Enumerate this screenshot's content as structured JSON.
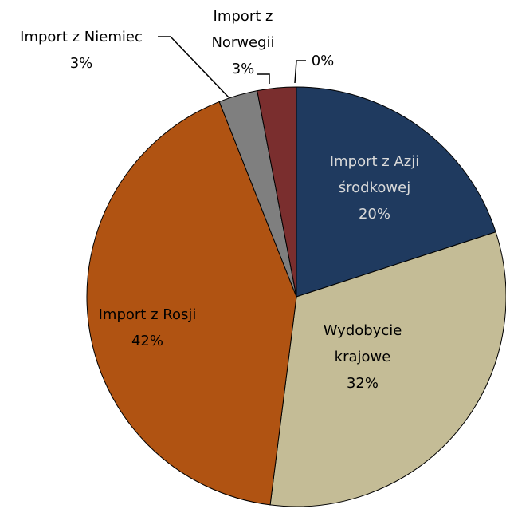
{
  "chart_data": {
    "type": "pie",
    "categories": [
      "Import z Azji środkowej",
      "Wydobycie krajowe",
      "Import z Rosji",
      "Import z Niemiec",
      "Import z Norwegii",
      null
    ],
    "values": [
      20,
      32,
      42,
      3,
      3,
      0
    ],
    "value_labels": [
      "20%",
      "32%",
      "42%",
      "3%",
      "3%",
      "0%"
    ],
    "colors": [
      "#1f3a5f",
      "#c4bc96",
      "#b05312",
      "#7f7f7f",
      "#7a2e2e",
      "#4f6228"
    ]
  }
}
